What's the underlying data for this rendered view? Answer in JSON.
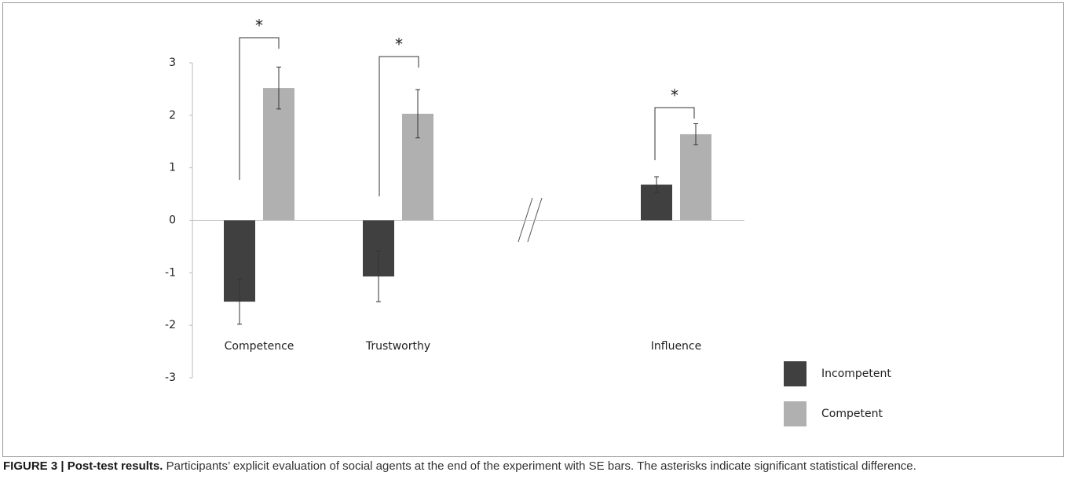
{
  "chart_data": {
    "type": "bar",
    "categories": [
      "Competence",
      "Trustworthy",
      "Influence"
    ],
    "series": [
      {
        "name": "Incompetent",
        "color": "#404040",
        "values": [
          -1.55,
          -1.07,
          0.68
        ],
        "errors": [
          0.43,
          0.48,
          0.15
        ]
      },
      {
        "name": "Competent",
        "color": "#b0b0b0",
        "values": [
          2.52,
          2.03,
          1.64
        ],
        "errors": [
          0.4,
          0.46,
          0.2
        ]
      }
    ],
    "annotations": [
      "*",
      "*",
      "*"
    ],
    "ylim": [
      -3,
      3
    ],
    "yticks": [
      -3,
      -2,
      -1,
      0,
      1,
      2,
      3
    ],
    "legend": "right"
  },
  "caption": {
    "label": "FIGURE 3 | Post-test results.",
    "text": "Participants’ explicit evaluation of social agents at the end of the experiment with SE bars. The asterisks indicate significant statistical difference."
  }
}
